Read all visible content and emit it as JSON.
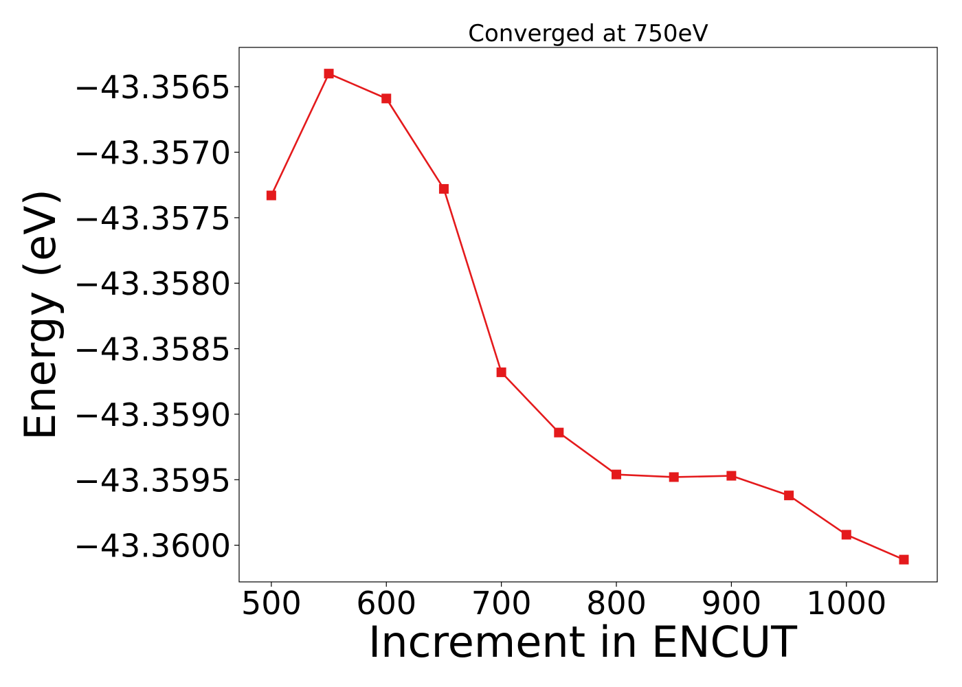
{
  "chart_data": {
    "type": "line",
    "title": "Converged at 750eV",
    "xlabel": "Increment in ENCUT",
    "ylabel": "Energy (eV)",
    "x": [
      500,
      550,
      600,
      650,
      700,
      750,
      800,
      850,
      900,
      950,
      1000,
      1050
    ],
    "series": [
      {
        "values": [
          -43.35733,
          -43.3564,
          -43.35659,
          -43.35728,
          -43.35868,
          -43.35914,
          -43.35946,
          -43.35948,
          -43.35947,
          -43.35962,
          -43.35992,
          -43.36011
        ],
        "color": "#e41a1c",
        "marker": "square"
      }
    ],
    "xlim": [
      472,
      1079
    ],
    "ylim": [
      -43.36028,
      -43.3562
    ],
    "xticks": [
      500,
      600,
      700,
      800,
      900,
      1000
    ],
    "xtick_labels": [
      "500",
      "600",
      "700",
      "800",
      "900",
      "1000"
    ],
    "yticks": [
      -43.3565,
      -43.357,
      -43.3575,
      -43.358,
      -43.3585,
      -43.359,
      -43.3595,
      -43.36
    ],
    "ytick_labels": [
      "−43.3565",
      "−43.3570",
      "−43.3575",
      "−43.3580",
      "−43.3585",
      "−43.3590",
      "−43.3595",
      "−43.3600"
    ],
    "grid": false,
    "legend": "none"
  }
}
